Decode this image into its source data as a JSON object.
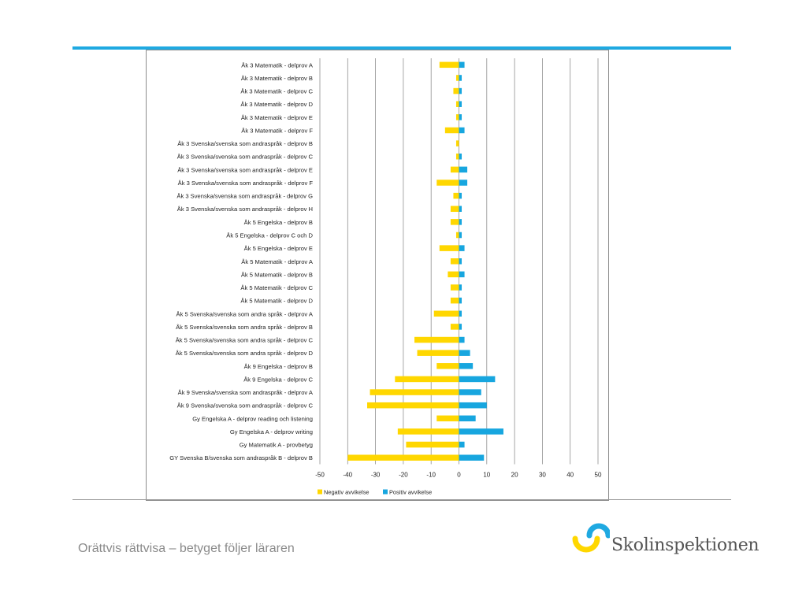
{
  "colors": {
    "accent_blue": "#1fa9e1",
    "negative": "#ffd700",
    "positive": "#17a6df"
  },
  "footer": {
    "title": "Orättvis rättvisa – betyget följer läraren"
  },
  "logo": {
    "icon": "skolinspektionen-logo-icon",
    "text": "Skolinspektionen"
  },
  "chart_data": {
    "type": "bar",
    "orientation": "horizontal",
    "title": "",
    "xlabel": "",
    "ylabel": "",
    "xlim": [
      -50,
      50
    ],
    "xticks": [
      -50,
      -40,
      -30,
      -20,
      -10,
      0,
      10,
      20,
      30,
      40,
      50
    ],
    "grid": "vertical",
    "legend_position": "bottom-left",
    "categories": [
      "Åk 3 Matematik - delprov A",
      "Åk 3 Matematik - delprov B",
      "Åk 3 Matematik - delprov C",
      "Åk 3 Matematik - delprov D",
      "Åk 3 Matematik - delprov E",
      "Åk 3 Matematik - delprov F",
      "Åk 3 Svenska/svenska som andraspråk - delprov B",
      "Åk 3 Svenska/svenska som andraspråk - delprov C",
      "Åk 3 Svenska/svenska som andraspråk - delprov E",
      "Åk 3 Svenska/svenska som andraspråk - delprov F",
      "Åk 3 Svenska/svenska som andraspråk - delprov G",
      "Åk 3 Svenska/svenska som andraspråk - delprov H",
      "Åk 5 Engelska - delprov B",
      "Åk 5 Engelska - delprov C och D",
      "Åk 5 Engelska - delprov E",
      "Åk 5 Matematik - delprov A",
      "Åk 5 Matematik - delprov B",
      "Åk 5 Matematik - delprov C",
      "Åk 5 Matematik - delprov D",
      "Åk 5 Svenska/svenska som andra språk - delprov A",
      "Åk 5 Svenska/svenska som andra språk - delprov B",
      "Åk 5 Svenska/svenska som andra språk - delprov C",
      "Åk 5 Svenska/svenska som andra språk - delprov D",
      "Åk 9 Engelska - delprov B",
      "Åk 9 Engelska - delprov C",
      "Åk 9 Svenska/svenska som andraspråk - delprov A",
      "Åk 9 Svenska/svenska som andraspråk - delprov C",
      "Gy Engelska A - delprov reading  och listening",
      "Gy Engelska A - delprov writing",
      "Gy Matematik A - provbetyg",
      "GY Svenska B/svenska som andraspråk B - delprov B"
    ],
    "series": [
      {
        "name": "Negativ avvikelse",
        "color": "#ffd700",
        "values": [
          -7,
          -1,
          -2,
          -1,
          -1,
          -5,
          -1,
          -1,
          -3,
          -8,
          -2,
          -3,
          -3,
          -1,
          -7,
          -3,
          -4,
          -3,
          -3,
          -9,
          -3,
          -16,
          -15,
          -8,
          -23,
          -32,
          -33,
          -8,
          -22,
          -19,
          -40
        ]
      },
      {
        "name": "Positiv avvikelse",
        "color": "#17a6df",
        "values": [
          2,
          1,
          1,
          1,
          1,
          2,
          0,
          1,
          3,
          3,
          1,
          1,
          1,
          1,
          2,
          1,
          2,
          1,
          1,
          1,
          1,
          2,
          4,
          5,
          13,
          8,
          10,
          6,
          16,
          2,
          9
        ]
      }
    ]
  }
}
